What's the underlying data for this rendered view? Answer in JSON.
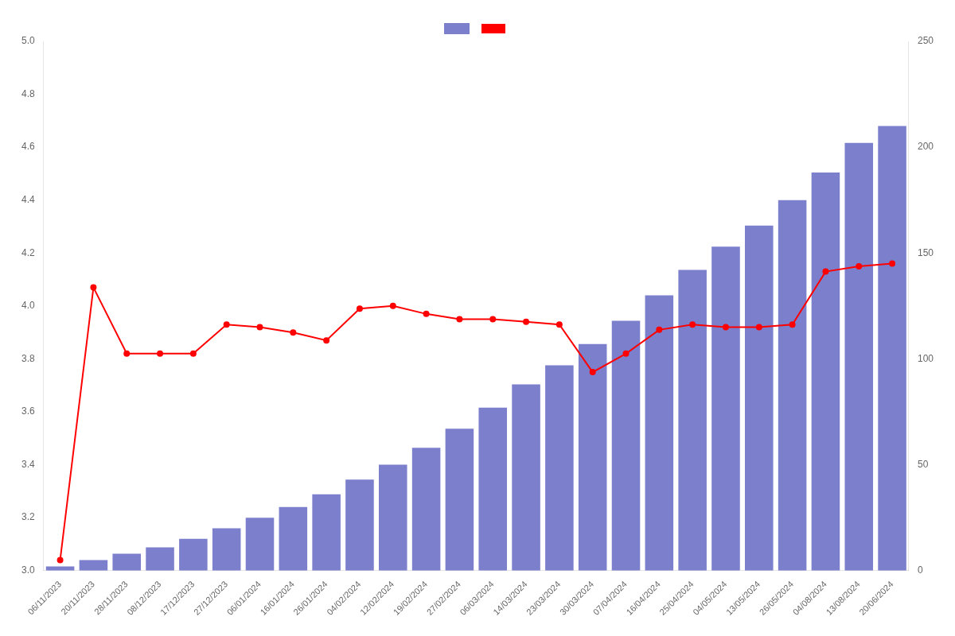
{
  "chart_data": {
    "type": "bar",
    "categories": [
      "06/11/2023",
      "20/11/2023",
      "28/11/2023",
      "08/12/2023",
      "17/12/2023",
      "27/12/2023",
      "06/01/2024",
      "16/01/2024",
      "26/01/2024",
      "04/02/2024",
      "12/02/2024",
      "19/02/2024",
      "27/02/2024",
      "06/03/2024",
      "14/03/2024",
      "23/03/2024",
      "30/03/2024",
      "07/04/2024",
      "16/04/2024",
      "25/04/2024",
      "04/05/2024",
      "13/05/2024",
      "26/05/2024",
      "04/08/2024",
      "13/08/2024",
      "20/06/2024"
    ],
    "series": [
      {
        "values": [
          2,
          5,
          8,
          11,
          15,
          20,
          25,
          30,
          36,
          43,
          50,
          58,
          67,
          77,
          88,
          97,
          107,
          118,
          130,
          142,
          153,
          163,
          175,
          188,
          202,
          210
        ],
        "color": "#7b7fcc",
        "axis": "y2"
      },
      {
        "type": "line",
        "values": [
          3.04,
          4.07,
          3.82,
          3.82,
          3.82,
          3.93,
          3.92,
          3.9,
          3.87,
          3.99,
          4.0,
          3.97,
          3.95,
          3.95,
          3.94,
          3.93,
          3.75,
          3.82,
          3.91,
          3.93,
          3.92,
          3.92,
          3.93,
          4.13,
          4.15,
          4.16
        ],
        "color": "#ff0000",
        "marker": "circle",
        "line_style": "solid"
      }
    ],
    "ylim": [
      3.0,
      5.0
    ],
    "yticks": [
      {
        "value": 3.0,
        "label": "3.0"
      },
      3.2,
      3.4,
      3.6,
      3.8,
      {
        "value": 4.0,
        "label": "4.0"
      },
      4.2,
      4.4,
      4.6,
      4.8,
      {
        "value": 5.0,
        "label": "5.0"
      }
    ],
    "y2lim": [
      0,
      250
    ],
    "y2ticks": [
      0,
      50,
      100,
      150,
      200,
      250
    ],
    "grid": false,
    "legend": "top"
  }
}
